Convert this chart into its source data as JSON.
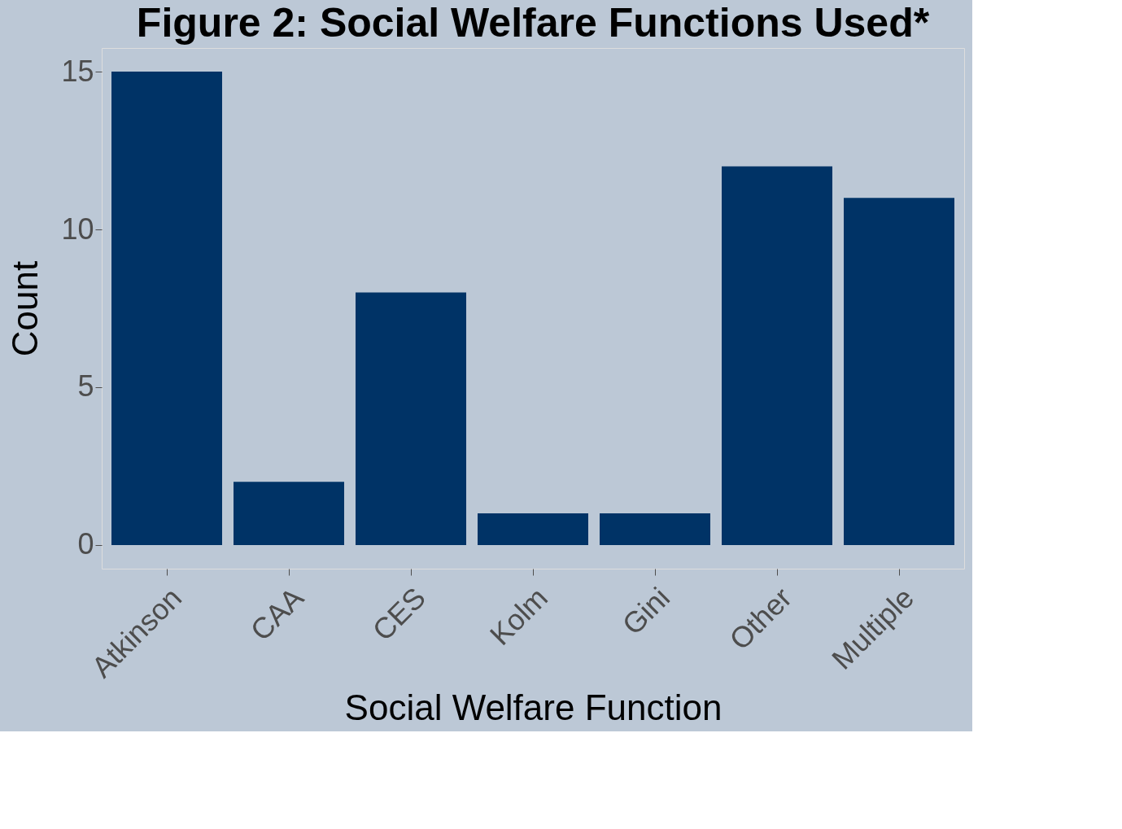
{
  "chart_data": {
    "type": "bar",
    "title": "Figure 2: Social Welfare Functions Used*",
    "xlabel": "Social Welfare Function",
    "ylabel": "Count",
    "categories": [
      "Atkinson",
      "CAA",
      "CES",
      "Kolm",
      "Gini",
      "Other",
      "Multiple"
    ],
    "values": [
      15,
      2,
      8,
      1,
      1,
      12,
      11
    ],
    "color": "#003366",
    "ylim": [
      -0.75,
      15.75
    ],
    "yticks": [
      0,
      5,
      10,
      15
    ],
    "grid": false
  }
}
